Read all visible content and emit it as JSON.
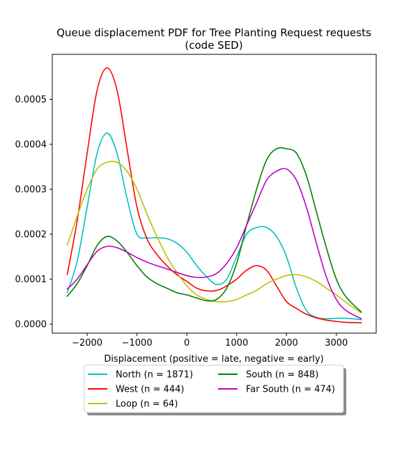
{
  "chart_data": {
    "type": "line",
    "title_line1": "Queue displacement PDF for Tree Planting Request  requests",
    "title_line2": "(code SED)",
    "xlabel": "Displacement (positive = late, negative = early)",
    "ylabel": "",
    "xlim": [
      -2700,
      3800
    ],
    "ylim": [
      -2e-05,
      0.0006
    ],
    "x_ticks": [
      -2000,
      -1000,
      0,
      1000,
      2000,
      3000
    ],
    "x_tick_labels": [
      "−2000",
      "−1000",
      "0",
      "1000",
      "2000",
      "3000"
    ],
    "y_ticks": [
      0,
      0.0001,
      0.0002,
      0.0003,
      0.0004,
      0.0005
    ],
    "y_tick_labels": [
      "0.0000",
      "0.0001",
      "0.0002",
      "0.0003",
      "0.0004",
      "0.0005"
    ],
    "grid": false,
    "legend_position": "below",
    "x": [
      -2400,
      -2200,
      -2000,
      -1800,
      -1600,
      -1400,
      -1200,
      -1000,
      -800,
      -600,
      -400,
      -200,
      0,
      200,
      400,
      600,
      800,
      1000,
      1200,
      1400,
      1600,
      1800,
      2000,
      2200,
      2400,
      2600,
      2800,
      3000,
      3200,
      3500
    ],
    "series": [
      {
        "name": "North (n = 1871)",
        "color": "#00bfbf",
        "values": [
          7e-05,
          0.00014,
          0.00026,
          0.00038,
          0.000425,
          0.00038,
          0.00028,
          0.0002,
          0.000192,
          0.000192,
          0.00019,
          0.00018,
          0.00016,
          0.00013,
          0.000105,
          8.8e-05,
          0.0001,
          0.00015,
          0.0002,
          0.000215,
          0.000215,
          0.000195,
          0.00015,
          8e-05,
          3e-05,
          1.5e-05,
          1.2e-05,
          1.3e-05,
          1.3e-05,
          1e-05
        ]
      },
      {
        "name": "West (n = 444)",
        "color": "#ff0000",
        "values": [
          0.00011,
          0.00023,
          0.00038,
          0.00052,
          0.00057,
          0.00052,
          0.00039,
          0.00026,
          0.00019,
          0.000155,
          0.00013,
          0.00011,
          9.5e-05,
          8e-05,
          7.4e-05,
          7.5e-05,
          8.5e-05,
          0.0001,
          0.00012,
          0.00013,
          0.00012,
          8.5e-05,
          5e-05,
          3.5e-05,
          2.2e-05,
          1.4e-05,
          9e-06,
          6e-06,
          4e-06,
          3e-06
        ]
      },
      {
        "name": "Loop (n = 64)",
        "color": "#bfbf00",
        "values": [
          0.000175,
          0.00024,
          0.0003,
          0.000345,
          0.00036,
          0.00036,
          0.00034,
          0.0003,
          0.000245,
          0.000195,
          0.00015,
          0.000115,
          8.5e-05,
          6.5e-05,
          5.5e-05,
          5e-05,
          5e-05,
          5.5e-05,
          6.5e-05,
          7.5e-05,
          9e-05,
          0.0001,
          0.000108,
          0.00011,
          0.000105,
          9.5e-05,
          8e-05,
          6.5e-05,
          4.8e-05,
          2.5e-05
        ]
      },
      {
        "name": "South (n = 848)",
        "color": "#008000",
        "values": [
          6.2e-05,
          9e-05,
          0.00013,
          0.000175,
          0.000195,
          0.000185,
          0.00016,
          0.00013,
          0.000105,
          9e-05,
          8e-05,
          7e-05,
          6.5e-05,
          5.8e-05,
          5.2e-05,
          5.5e-05,
          8e-05,
          0.000135,
          0.00022,
          0.0003,
          0.000365,
          0.00039,
          0.00039,
          0.00038,
          0.00033,
          0.00025,
          0.00017,
          0.0001,
          6e-05,
          2.7e-05
        ]
      },
      {
        "name": "Far South (n = 474)",
        "color": "#bf00bf",
        "values": [
          7.8e-05,
          0.0001,
          0.000132,
          0.000162,
          0.000173,
          0.00017,
          0.00016,
          0.000148,
          0.000138,
          0.00013,
          0.000123,
          0.000115,
          0.000108,
          0.000104,
          0.000105,
          0.000113,
          0.000135,
          0.00017,
          0.00022,
          0.00027,
          0.00032,
          0.00034,
          0.000345,
          0.00032,
          0.00026,
          0.00018,
          0.000105,
          5.5e-05,
          3e-05,
          1.2e-05
        ]
      }
    ],
    "legend": {
      "entries": [
        {
          "label": "North (n = 1871)",
          "color": "#00bfbf"
        },
        {
          "label": "South (n = 848)",
          "color": "#008000"
        },
        {
          "label": "West (n = 444)",
          "color": "#ff0000"
        },
        {
          "label": "Far South (n = 474)",
          "color": "#bf00bf"
        },
        {
          "label": "Loop (n = 64)",
          "color": "#bfbf00"
        }
      ]
    }
  }
}
